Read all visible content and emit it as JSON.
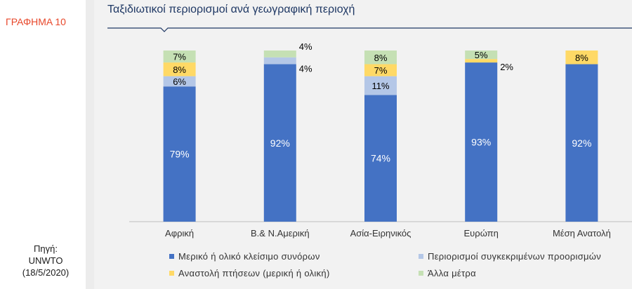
{
  "side": {
    "chart_label": "ΓΡΑΦΗΜΑ 10",
    "source_lines": [
      "Πηγή:",
      "UNWTO",
      "(18/5/2020)"
    ]
  },
  "colors": {
    "series": [
      "#4472c4",
      "#b4c7e7",
      "#ffd966",
      "#c5e0b4"
    ],
    "title": "#1f3864",
    "axis": "#bfbfbf"
  },
  "chart_data": {
    "type": "bar",
    "stacked": true,
    "title": "Ταξιδιωτικοί περιορισμοί ανά γεωγραφική περιοχή",
    "categories": [
      "Αφρική",
      "Β.& Ν.Αμερική",
      "Ασία-Ειρηνικός",
      "Ευρώπη",
      "Μέση Ανατολή"
    ],
    "ylim": [
      0,
      100
    ],
    "legend_position": "bottom",
    "series": [
      {
        "name": "Μερικό ή ολικό κλείσιμο συνόρων",
        "values": [
          79,
          92,
          74,
          93,
          92
        ]
      },
      {
        "name": "Περιορισμοί συγκεκριμένων προορισμών",
        "values": [
          6,
          4,
          11,
          0,
          0
        ]
      },
      {
        "name": "Αναστολή  πτήσεων (μερική ή ολική)",
        "values": [
          8,
          0,
          7,
          2,
          8
        ]
      },
      {
        "name": "Άλλα  μέτρα",
        "values": [
          7,
          4,
          8,
          5,
          0
        ]
      }
    ],
    "labels": [
      [
        "79%",
        "92%",
        "74%",
        "93%",
        "92%"
      ],
      [
        "6%",
        "4%",
        "11%",
        "",
        ""
      ],
      [
        "8%",
        "",
        "7%",
        "2%",
        "8%"
      ],
      [
        "7%",
        "4%",
        "8%",
        "5%",
        ""
      ]
    ]
  }
}
